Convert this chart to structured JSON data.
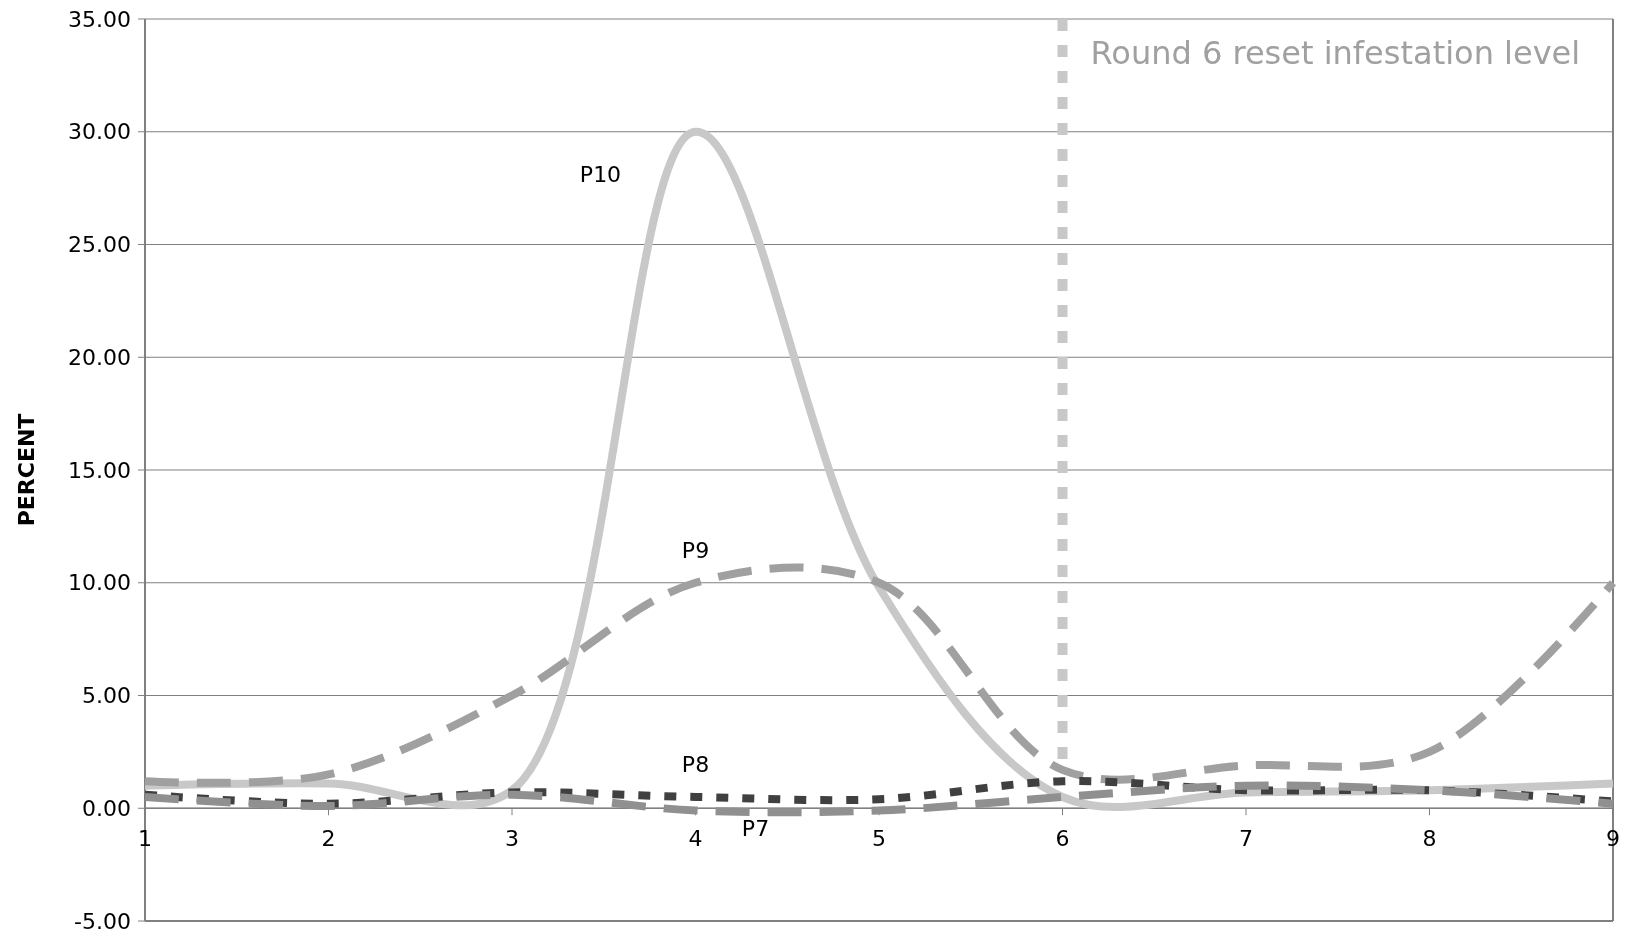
{
  "chart_data": {
    "type": "line",
    "ylabel": "PERCENT",
    "x": [
      1,
      2,
      3,
      4,
      5,
      6,
      7,
      8,
      9
    ],
    "xlim": [
      1,
      9
    ],
    "xticks": [
      1,
      2,
      3,
      4,
      5,
      6,
      7,
      8,
      9
    ],
    "ylim": [
      -5,
      35
    ],
    "yticks": [
      {
        "value": -5,
        "label": "-5.00"
      },
      {
        "value": 0,
        "label": "0.00"
      },
      {
        "value": 5,
        "label": "5.00"
      },
      {
        "value": 10,
        "label": "10.00"
      },
      {
        "value": 15,
        "label": "15.00"
      },
      {
        "value": 20,
        "label": "20.00"
      },
      {
        "value": 25,
        "label": "25.00"
      },
      {
        "value": 30,
        "label": "30.00"
      },
      {
        "value": 35,
        "label": "35.00"
      }
    ],
    "grid": "y",
    "marker": "none",
    "series": [
      {
        "name": "P10",
        "color": "#c8c8c8",
        "line_style": "solid",
        "values": [
          1.0,
          1.1,
          0.8,
          30.0,
          9.8,
          0.5,
          0.7,
          0.8,
          1.1
        ]
      },
      {
        "name": "P9",
        "color": "#a0a0a0",
        "line_style": "dashed",
        "values": [
          1.2,
          1.5,
          5.0,
          10.0,
          10.0,
          1.7,
          1.9,
          2.5,
          10.0
        ]
      },
      {
        "name": "P8",
        "color": "#404040",
        "line_style": "dotted",
        "values": [
          0.6,
          0.2,
          0.7,
          0.5,
          0.4,
          1.2,
          0.8,
          0.8,
          0.3
        ]
      },
      {
        "name": "P7",
        "color": "#909090",
        "line_style": "dashed",
        "values": [
          0.5,
          0.1,
          0.6,
          -0.1,
          -0.1,
          0.5,
          1.0,
          0.8,
          0.2
        ]
      }
    ],
    "ref_lines": [
      {
        "axis": "x",
        "value": 6,
        "label": "Round 6 reset infestation level",
        "color": "#c8c8c8",
        "line_style": "dotted"
      }
    ]
  }
}
